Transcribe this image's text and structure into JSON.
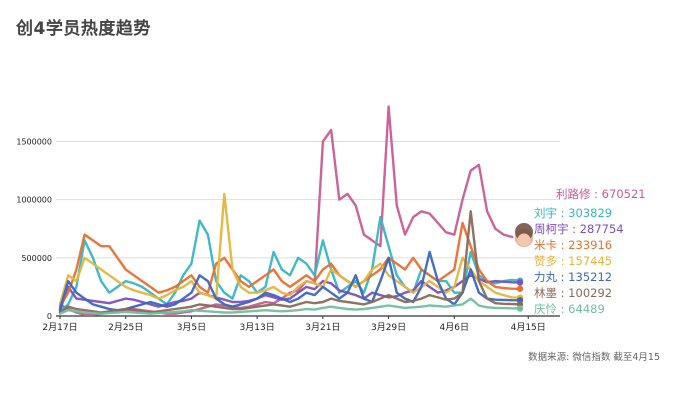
{
  "title": "创4学员热度趋势",
  "source": "数据来源: 微信指数 截至4月15",
  "chart_data": {
    "type": "line",
    "title": "创4学员热度趋势",
    "xlabel": "",
    "ylabel": "",
    "ylim": [
      0,
      1900000
    ],
    "yticks": [
      0,
      500000,
      1000000,
      1500000
    ],
    "ytick_labels": [
      "0",
      "500000",
      "1000000",
      "1500000"
    ],
    "x_tick_labels": [
      "2月17日",
      "2月25日",
      "3月5日",
      "3月13日",
      "3月21日",
      "3月29日",
      "4月6日",
      "4月15日"
    ],
    "x_tick_index": [
      0,
      8,
      16,
      24,
      32,
      40,
      48,
      57
    ],
    "grid": "horizontal",
    "legend": "right-end labels",
    "series": [
      {
        "name": "利路修",
        "value_label": "利路修 : 670521",
        "color": "#c85c94",
        "values": [
          100000,
          60000,
          30000,
          10000,
          10000,
          20000,
          30000,
          40000,
          50000,
          60000,
          50000,
          40000,
          30000,
          20000,
          20000,
          30000,
          40000,
          60000,
          80000,
          100000,
          90000,
          80000,
          70000,
          80000,
          100000,
          120000,
          110000,
          150000,
          200000,
          220000,
          300000,
          280000,
          1500000,
          1600000,
          1000000,
          1050000,
          950000,
          700000,
          650000,
          600000,
          1800000,
          950000,
          700000,
          850000,
          900000,
          880000,
          800000,
          720000,
          700000,
          1000000,
          1250000,
          1300000,
          900000,
          750000,
          700000,
          680000,
          670521
        ]
      },
      {
        "name": "刘宇",
        "value_label": "刘宇 : 303829",
        "color": "#36b5c5",
        "values": [
          40000,
          100000,
          250000,
          650000,
          500000,
          300000,
          200000,
          250000,
          300000,
          280000,
          250000,
          200000,
          150000,
          100000,
          200000,
          350000,
          450000,
          820000,
          700000,
          300000,
          200000,
          150000,
          350000,
          300000,
          200000,
          250000,
          550000,
          400000,
          350000,
          500000,
          450000,
          350000,
          650000,
          400000,
          200000,
          250000,
          300000,
          200000,
          400000,
          850000,
          600000,
          350000,
          250000,
          200000,
          400000,
          350000,
          300000,
          300000,
          200000,
          200000,
          550000,
          350000,
          300000,
          280000,
          300000,
          310000,
          303829
        ]
      },
      {
        "name": "周柯宇",
        "value_label": "周柯宇 : 287754",
        "color": "#7b4fbf",
        "values": [
          50000,
          250000,
          150000,
          140000,
          130000,
          120000,
          110000,
          130000,
          150000,
          140000,
          120000,
          100000,
          80000,
          100000,
          120000,
          130000,
          150000,
          200000,
          180000,
          160000,
          140000,
          120000,
          120000,
          130000,
          150000,
          180000,
          160000,
          140000,
          150000,
          200000,
          250000,
          230000,
          300000,
          280000,
          220000,
          200000,
          180000,
          150000,
          200000,
          180000,
          160000,
          170000,
          200000,
          220000,
          300000,
          250000,
          200000,
          220000,
          250000,
          300000,
          350000,
          320000,
          290000,
          300000,
          295000,
          290000,
          287754
        ]
      },
      {
        "name": "米卡",
        "value_label": "米卡 : 233916",
        "color": "#e86f2f",
        "values": [
          80000,
          200000,
          400000,
          700000,
          650000,
          600000,
          600000,
          500000,
          400000,
          350000,
          300000,
          250000,
          200000,
          220000,
          250000,
          300000,
          350000,
          250000,
          200000,
          450000,
          500000,
          400000,
          300000,
          250000,
          300000,
          350000,
          400000,
          300000,
          250000,
          300000,
          350000,
          300000,
          400000,
          450000,
          350000,
          300000,
          250000,
          300000,
          350000,
          400000,
          500000,
          450000,
          400000,
          500000,
          400000,
          350000,
          300000,
          350000,
          400000,
          800000,
          600000,
          400000,
          300000,
          250000,
          240000,
          235000,
          233916
        ]
      },
      {
        "name": "赞多",
        "value_label": "赞多 : 157445",
        "color": "#e6b53a",
        "values": [
          100000,
          350000,
          300000,
          500000,
          450000,
          400000,
          350000,
          300000,
          250000,
          220000,
          200000,
          180000,
          150000,
          180000,
          220000,
          250000,
          300000,
          200000,
          180000,
          150000,
          1050000,
          400000,
          250000,
          200000,
          200000,
          220000,
          250000,
          200000,
          180000,
          250000,
          300000,
          280000,
          250000,
          400000,
          350000,
          300000,
          250000,
          300000,
          400000,
          450000,
          350000,
          300000,
          250000,
          200000,
          250000,
          300000,
          250000,
          200000,
          250000,
          500000,
          400000,
          300000,
          250000,
          200000,
          180000,
          160000,
          157445
        ]
      },
      {
        "name": "力丸",
        "value_label": "力丸 : 135212",
        "color": "#3a66c0",
        "values": [
          60000,
          300000,
          200000,
          150000,
          100000,
          80000,
          60000,
          50000,
          60000,
          80000,
          100000,
          120000,
          100000,
          80000,
          100000,
          150000,
          200000,
          350000,
          300000,
          150000,
          100000,
          80000,
          100000,
          120000,
          150000,
          200000,
          180000,
          150000,
          120000,
          150000,
          200000,
          180000,
          250000,
          200000,
          150000,
          200000,
          350000,
          150000,
          120000,
          300000,
          500000,
          200000,
          150000,
          120000,
          250000,
          550000,
          300000,
          150000,
          100000,
          200000,
          400000,
          200000,
          150000,
          140000,
          138000,
          136000,
          135212
        ]
      },
      {
        "name": "林墨",
        "value_label": "林墨 : 100292",
        "color": "#8b6a58",
        "values": [
          30000,
          80000,
          60000,
          50000,
          40000,
          30000,
          40000,
          50000,
          60000,
          50000,
          40000,
          30000,
          40000,
          50000,
          60000,
          70000,
          80000,
          100000,
          90000,
          80000,
          70000,
          60000,
          60000,
          70000,
          80000,
          90000,
          100000,
          90000,
          80000,
          100000,
          120000,
          110000,
          120000,
          150000,
          130000,
          120000,
          110000,
          100000,
          120000,
          150000,
          180000,
          150000,
          120000,
          130000,
          150000,
          180000,
          160000,
          140000,
          150000,
          200000,
          900000,
          300000,
          150000,
          110000,
          105000,
          102000,
          100292
        ]
      },
      {
        "name": "庆怜",
        "value_label": "庆怜 : 64489",
        "color": "#6fbf9d",
        "values": [
          20000,
          50000,
          40000,
          30000,
          25000,
          20000,
          25000,
          30000,
          35000,
          30000,
          25000,
          20000,
          25000,
          30000,
          35000,
          40000,
          50000,
          45000,
          40000,
          35000,
          30000,
          30000,
          35000,
          40000,
          45000,
          50000,
          45000,
          40000,
          45000,
          50000,
          60000,
          55000,
          70000,
          80000,
          70000,
          60000,
          55000,
          60000,
          70000,
          80000,
          90000,
          80000,
          70000,
          75000,
          80000,
          90000,
          85000,
          80000,
          90000,
          100000,
          150000,
          90000,
          75000,
          70000,
          68000,
          66000,
          64489
        ]
      }
    ]
  }
}
